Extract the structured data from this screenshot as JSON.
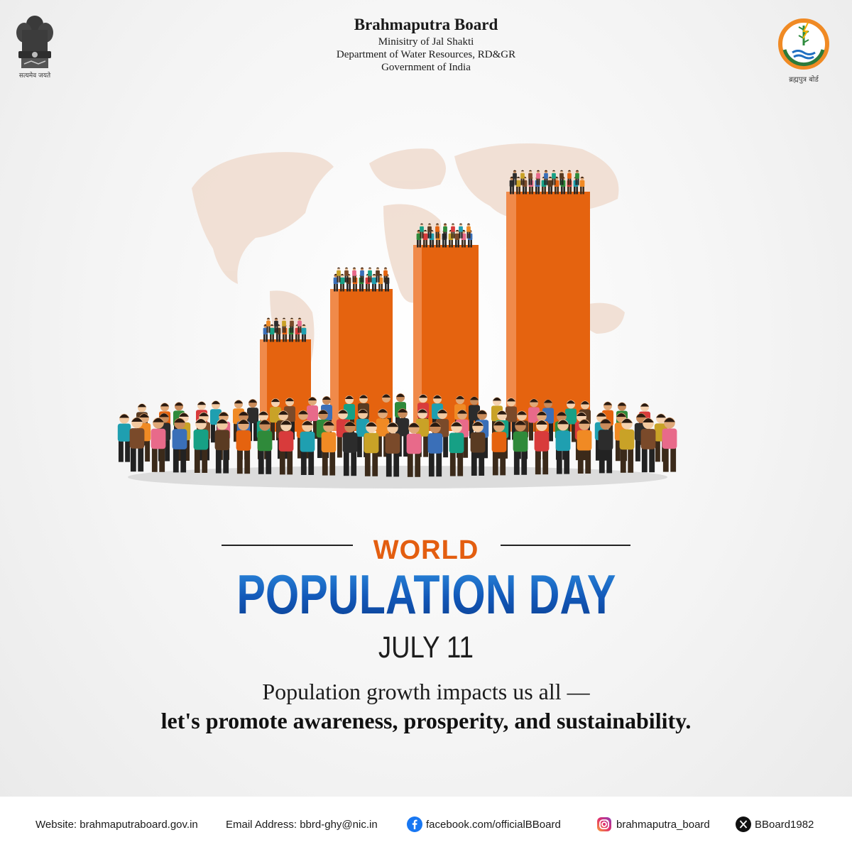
{
  "header": {
    "title": "Brahmaputra Board",
    "lines": [
      "Minisitry of Jal Shakti",
      "Department of Water Resources, RD&GR",
      "Government of India"
    ],
    "emblem_caption": "सत्यमेव जयते",
    "logo_caption": "ब्रह्मपुत्र बोर्ड"
  },
  "poster": {
    "world": "WORLD",
    "headline": "POPULATION DAY",
    "date": "JULY 11",
    "tagline_1": "Population growth impacts us all —",
    "tagline_2": "let's promote awareness, prosperity, and sustainability."
  },
  "illustration": {
    "description_icons": [
      "world-map-icon",
      "bar-column-icon",
      "crowd-people-icon"
    ],
    "bar_color": "#e5630f"
  },
  "footer": {
    "website": "Website: brahmaputraboard.gov.in",
    "email": "Email Address: bbrd-ghy@nic.in",
    "facebook": "facebook.com/officialBBoard",
    "instagram": "brahmaputra_board",
    "x": "BBoard1982"
  },
  "colors": {
    "accent_orange": "#e35e10",
    "headline_blue": "#1565c0",
    "text_dark": "#1a1a1a"
  }
}
